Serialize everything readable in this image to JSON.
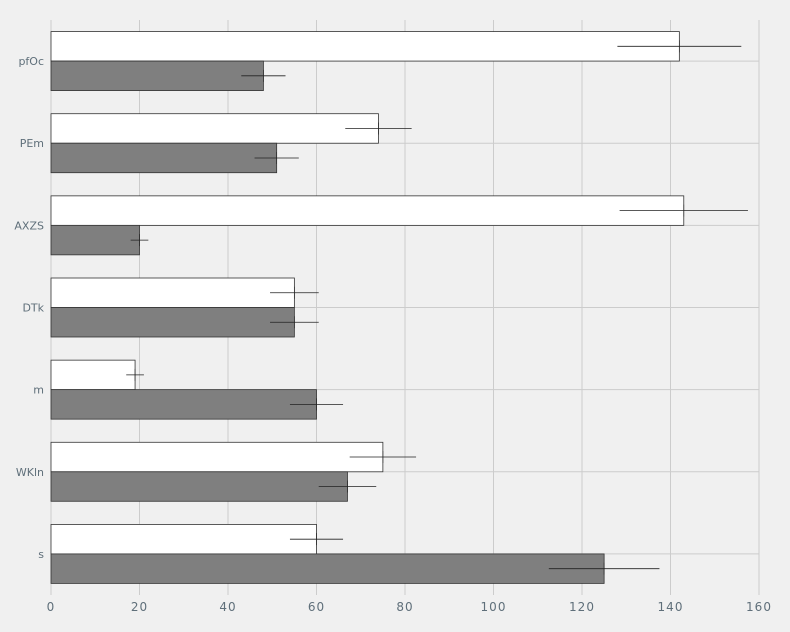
{
  "chart_data": {
    "type": "bar",
    "orientation": "horizontal",
    "categories": [
      "pfOc",
      "PEm",
      "AXZS",
      "DTk",
      "m",
      "WKln",
      "s"
    ],
    "series": [
      {
        "color": "#ffffff",
        "values": [
          142,
          74,
          143,
          55,
          19,
          75,
          60
        ],
        "errors": [
          14,
          7.5,
          14.5,
          5.5,
          2,
          7.5,
          6
        ]
      },
      {
        "color": "#7f7f7f",
        "values": [
          48,
          51,
          20,
          55,
          60,
          67,
          125
        ],
        "errors": [
          5,
          5,
          2,
          5.5,
          6,
          6.5,
          12.5
        ]
      }
    ],
    "xlim": [
      0,
      160
    ],
    "xticks": [
      "0",
      "20",
      "40",
      "60",
      "80",
      "100",
      "120",
      "140",
      "160"
    ],
    "grid": true,
    "title": "",
    "xlabel": "",
    "ylabel": ""
  }
}
